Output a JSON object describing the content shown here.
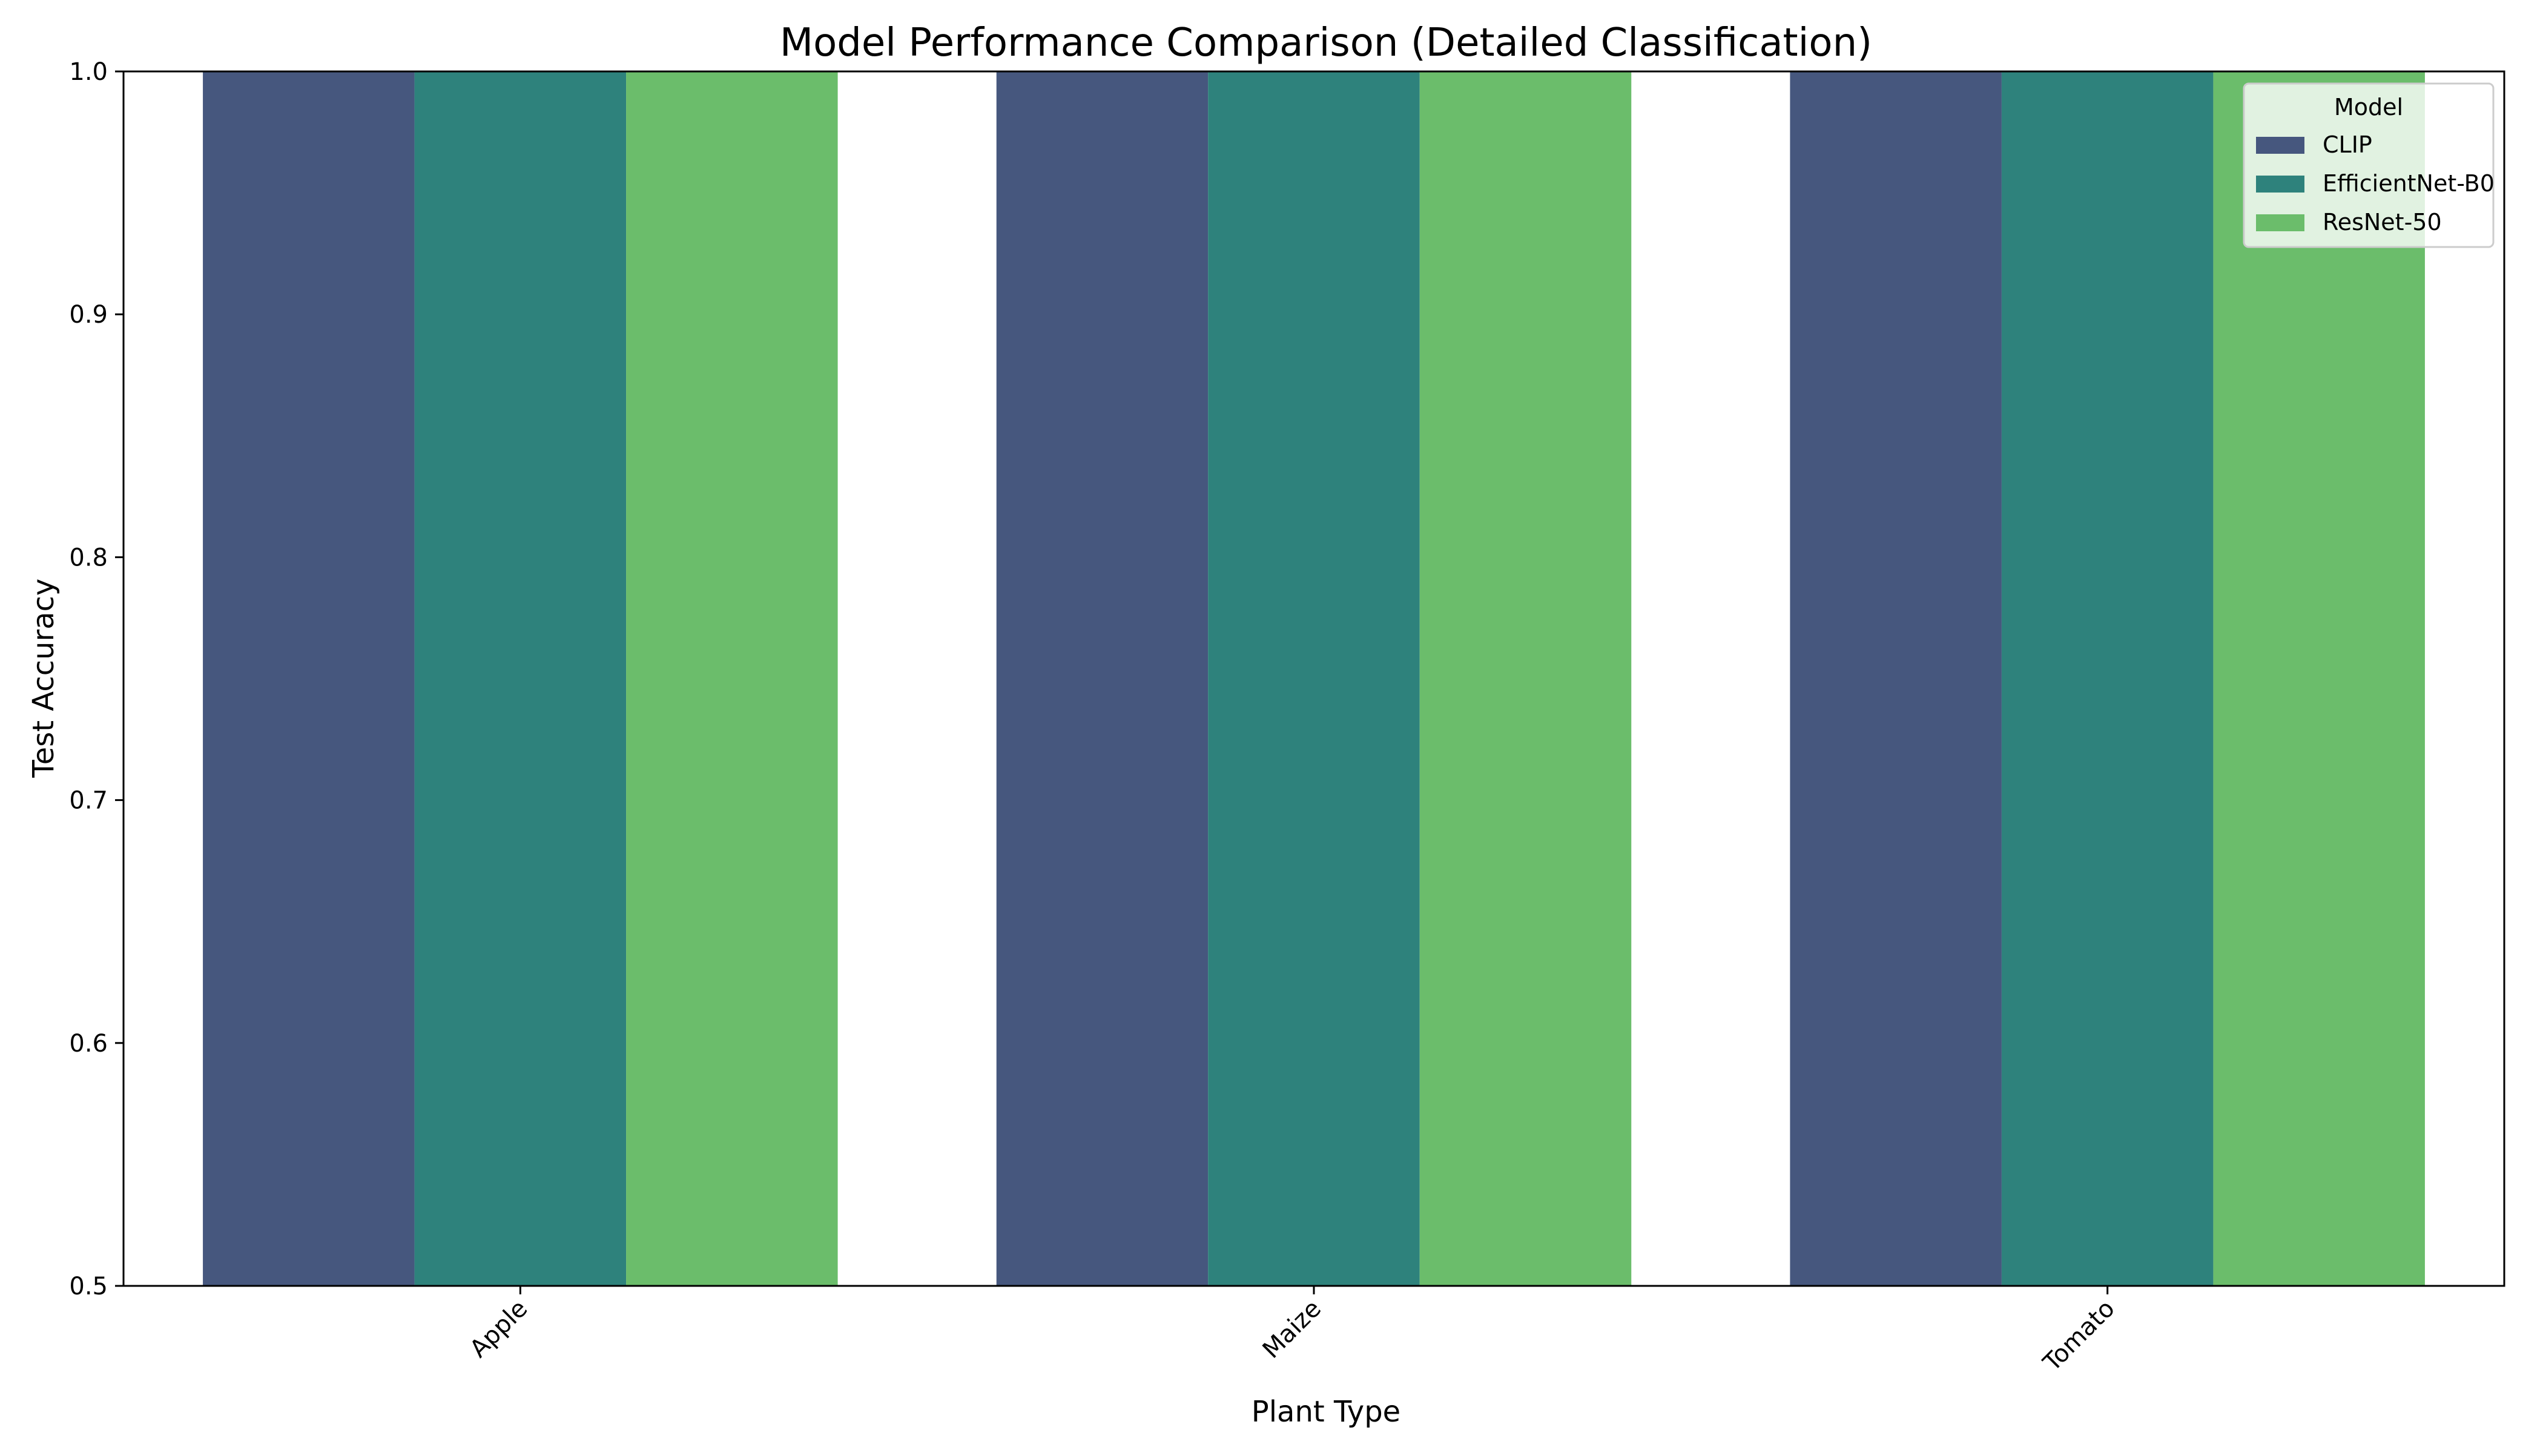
{
  "chart_data": {
    "type": "bar",
    "title": "Model Performance Comparison (Detailed Classification)",
    "xlabel": "Plant Type",
    "ylabel": "Test Accuracy",
    "categories": [
      "Apple",
      "Maize",
      "Tomato"
    ],
    "ylim": [
      0.5,
      1.0
    ],
    "yticks": [
      0.5,
      0.6,
      0.7,
      0.8,
      0.9,
      1.0
    ],
    "grid": false,
    "legend": {
      "title": "Model",
      "placement": "top-right"
    },
    "series": [
      {
        "name": "CLIP",
        "color": "#46577e",
        "values": [
          1.0,
          1.0,
          1.0
        ]
      },
      {
        "name": "EfficientNet-B0",
        "color": "#2e827c",
        "values": [
          1.0,
          1.0,
          1.0
        ]
      },
      {
        "name": "ResNet-50",
        "color": "#6bbd6b",
        "values": [
          1.0,
          1.0,
          1.0
        ]
      }
    ]
  }
}
